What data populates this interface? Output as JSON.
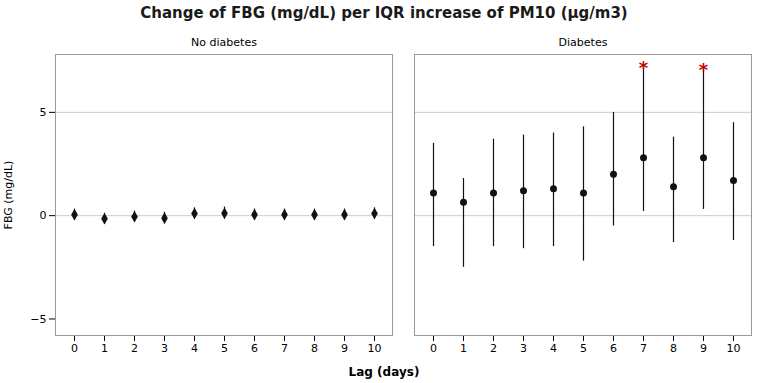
{
  "chart_data": {
    "type": "errorbar",
    "title": "Change of FBG (mg/dL) per IQR increase of PM10 (μg/m3)",
    "ylabel": "FBG (mg/dL)",
    "xlabel": "Lag (days)",
    "categories": [
      "0",
      "1",
      "2",
      "3",
      "4",
      "5",
      "6",
      "7",
      "8",
      "9",
      "10"
    ],
    "ylim": [
      -5.8,
      7.8
    ],
    "yticks": [
      -5,
      0,
      5
    ],
    "ref_lines": [
      0,
      5
    ],
    "series": [
      {
        "name": "No diabetes",
        "color": "#111111",
        "marker": "diamond",
        "values": [
          0.05,
          -0.15,
          -0.05,
          -0.12,
          0.1,
          0.12,
          0.05,
          0.05,
          0.05,
          0.05,
          0.1
        ],
        "lower": [
          -0.22,
          -0.42,
          -0.32,
          -0.4,
          -0.18,
          -0.18,
          -0.22,
          -0.22,
          -0.22,
          -0.22,
          -0.18
        ],
        "upper": [
          0.32,
          0.12,
          0.22,
          0.16,
          0.38,
          0.42,
          0.32,
          0.32,
          0.32,
          0.32,
          0.38
        ]
      },
      {
        "name": "Diabetes",
        "color": "#111111",
        "marker": "circle",
        "values": [
          1.1,
          0.65,
          1.1,
          1.2,
          1.3,
          1.1,
          2.0,
          2.8,
          1.4,
          2.8,
          1.7
        ],
        "lower": [
          -1.5,
          -2.5,
          -1.5,
          -1.6,
          -1.5,
          -2.2,
          -0.5,
          0.2,
          -1.3,
          0.3,
          -1.2
        ],
        "upper": [
          3.5,
          1.8,
          3.7,
          3.9,
          4.0,
          4.3,
          5.0,
          7.3,
          3.8,
          7.2,
          4.5
        ]
      }
    ],
    "annotations": [
      {
        "text": "*",
        "series": "Diabetes",
        "category": "7",
        "color": "#cc0000"
      },
      {
        "text": "*",
        "series": "Diabetes",
        "category": "9",
        "color": "#cc0000"
      }
    ]
  }
}
